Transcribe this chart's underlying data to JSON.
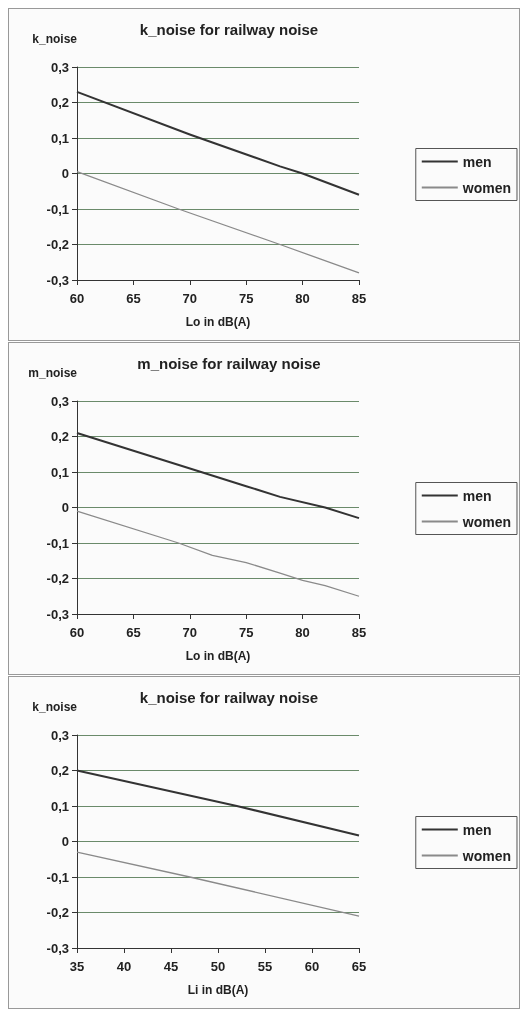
{
  "chart_data": [
    {
      "type": "line",
      "title": "k_noise for railway noise",
      "ylabel": "k_noise",
      "xlabel": "Lo in dB(A)",
      "xlim": [
        60,
        85
      ],
      "xticks": [
        60,
        65,
        70,
        75,
        80,
        85
      ],
      "ylim": [
        -0.3,
        0.3
      ],
      "yticks": [
        {
          "value": -0.3,
          "label": "-0,3"
        },
        {
          "value": -0.2,
          "label": "-0,2"
        },
        {
          "value": -0.1,
          "label": "-0,1"
        },
        {
          "value": 0,
          "label": "0"
        },
        {
          "value": 0.1,
          "label": "0,1"
        },
        {
          "value": 0.2,
          "label": "0,2"
        },
        {
          "value": 0.3,
          "label": "0,3"
        }
      ],
      "grid": "y",
      "legend": "right",
      "series": [
        {
          "name": "men",
          "color": "#333333",
          "x": [
            60,
            70,
            78,
            80,
            85
          ],
          "values": [
            0.23,
            0.11,
            0.02,
            0,
            -0.06
          ]
        },
        {
          "name": "women",
          "color": "#8a8a8a",
          "x": [
            60,
            69,
            78,
            85
          ],
          "values": [
            0.005,
            -0.1,
            -0.2,
            -0.28
          ]
        }
      ]
    },
    {
      "type": "line",
      "title": "m_noise for railway noise",
      "ylabel": "m_noise",
      "xlabel": "Lo in dB(A)",
      "xlim": [
        60,
        85
      ],
      "xticks": [
        60,
        65,
        70,
        75,
        80,
        85
      ],
      "ylim": [
        -0.3,
        0.3
      ],
      "yticks": [
        {
          "value": -0.3,
          "label": "-0,3"
        },
        {
          "value": -0.2,
          "label": "-0,2"
        },
        {
          "value": -0.1,
          "label": "-0,1"
        },
        {
          "value": 0,
          "label": "0"
        },
        {
          "value": 0.1,
          "label": "0,1"
        },
        {
          "value": 0.2,
          "label": "0,2"
        },
        {
          "value": 0.3,
          "label": "0,3"
        }
      ],
      "grid": "y",
      "legend": "right",
      "series": [
        {
          "name": "men",
          "color": "#333333",
          "x": [
            60,
            71,
            75,
            78,
            82,
            85
          ],
          "values": [
            0.21,
            0.1,
            0.06,
            0.03,
            0,
            -0.03
          ]
        },
        {
          "name": "women",
          "color": "#8a8a8a",
          "x": [
            60,
            69,
            72,
            75,
            78,
            80,
            82,
            85
          ],
          "values": [
            -0.01,
            -0.1,
            -0.135,
            -0.155,
            -0.185,
            -0.205,
            -0.22,
            -0.25
          ]
        }
      ]
    },
    {
      "type": "line",
      "title": "k_noise for railway noise",
      "ylabel": "k_noise",
      "xlabel": "Li in dB(A)",
      "xlim": [
        35,
        65
      ],
      "xticks": [
        35,
        40,
        45,
        50,
        55,
        60,
        65
      ],
      "ylim": [
        -0.3,
        0.3
      ],
      "yticks": [
        {
          "value": -0.3,
          "label": "-0,3"
        },
        {
          "value": -0.2,
          "label": "-0,2"
        },
        {
          "value": -0.1,
          "label": "-0,1"
        },
        {
          "value": 0,
          "label": "0"
        },
        {
          "value": 0.1,
          "label": "0,1"
        },
        {
          "value": 0.2,
          "label": "0,2"
        },
        {
          "value": 0.3,
          "label": "0,3"
        }
      ],
      "grid": "y",
      "legend": "right",
      "series": [
        {
          "name": "men",
          "color": "#333333",
          "x": [
            35,
            52,
            65
          ],
          "values": [
            0.2,
            0.1,
            0.017
          ]
        },
        {
          "name": "women",
          "color": "#8a8a8a",
          "x": [
            35,
            47,
            65
          ],
          "values": [
            -0.03,
            -0.1,
            -0.21
          ]
        }
      ]
    }
  ]
}
